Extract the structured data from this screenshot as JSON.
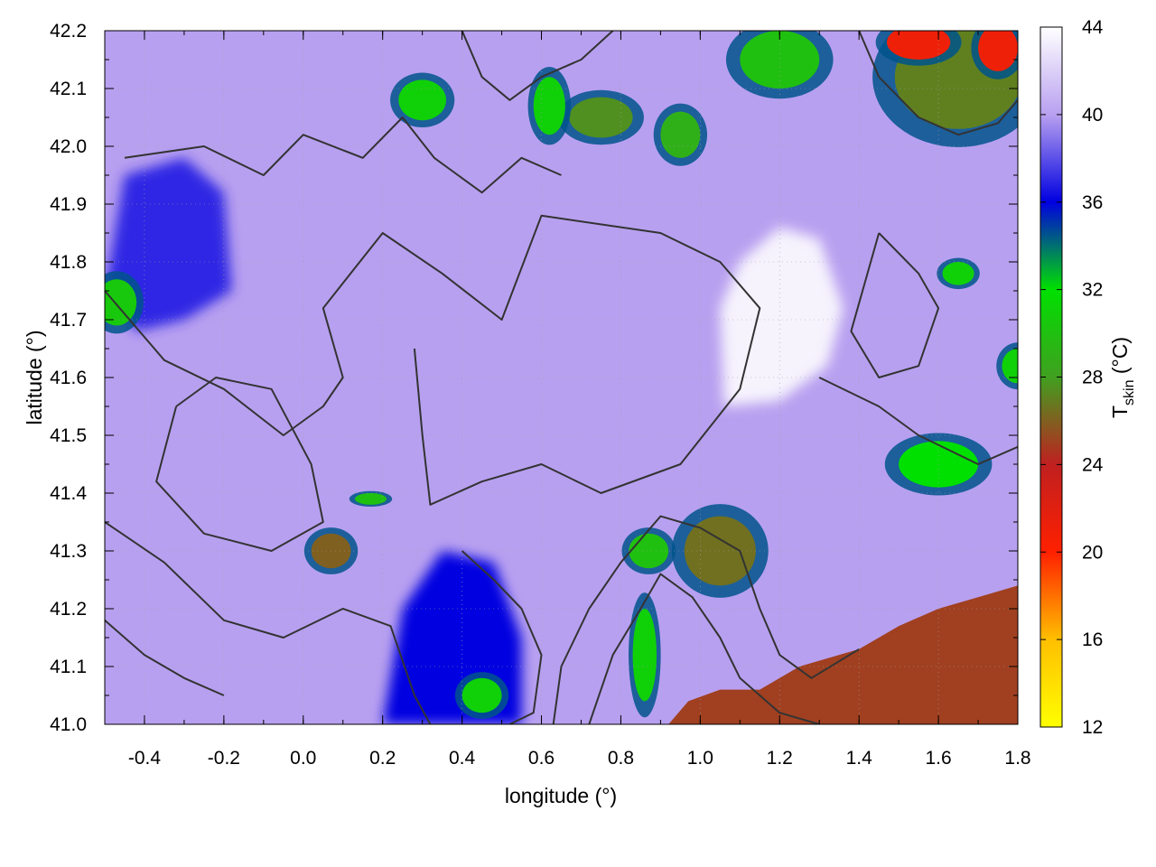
{
  "chart_data": {
    "type": "heatmap",
    "xlabel": "longitude (°)",
    "ylabel": "latitude (°)",
    "colorbar_label": "T",
    "colorbar_label_sub": "skin",
    "colorbar_label_suffix": " (°C)",
    "xlim": [
      -0.5,
      1.8
    ],
    "ylim": [
      41.0,
      42.2
    ],
    "clim": [
      12,
      44
    ],
    "x_ticks": [
      -0.4,
      -0.2,
      0.0,
      0.2,
      0.4,
      0.6,
      0.8,
      1.0,
      1.2,
      1.4,
      1.6,
      1.8
    ],
    "x_tick_labels": [
      "-0.4",
      "-0.2",
      "0.0",
      "0.2",
      "0.4",
      "0.6",
      "0.8",
      "1.0",
      "1.2",
      "1.4",
      "1.6",
      "1.8"
    ],
    "y_ticks": [
      41.0,
      41.1,
      41.2,
      41.3,
      41.4,
      41.5,
      41.6,
      41.7,
      41.8,
      41.9,
      42.0,
      42.1,
      42.2
    ],
    "y_tick_labels": [
      "41.0",
      "41.1",
      "41.2",
      "41.3",
      "41.4",
      "41.5",
      "41.6",
      "41.7",
      "41.8",
      "41.9",
      "42.0",
      "42.1",
      "42.2"
    ],
    "c_ticks": [
      12,
      16,
      20,
      24,
      28,
      32,
      36,
      40,
      44
    ],
    "c_tick_labels": [
      "12",
      "16",
      "20",
      "24",
      "28",
      "32",
      "36",
      "40",
      "44"
    ],
    "grid": true,
    "colormap": [
      {
        "value": 12,
        "color": "#ffff00"
      },
      {
        "value": 16,
        "color": "#ffbf00"
      },
      {
        "value": 20,
        "color": "#ff2000"
      },
      {
        "value": 24,
        "color": "#c02020"
      },
      {
        "value": 28,
        "color": "#40a020"
      },
      {
        "value": 32,
        "color": "#00e000"
      },
      {
        "value": 36,
        "color": "#0000e0"
      },
      {
        "value": 40,
        "color": "#b8a0f0"
      },
      {
        "value": 44,
        "color": "#ffffff"
      }
    ],
    "regions": [
      {
        "name": "sea",
        "value": 25,
        "polygon": [
          [
            0.92,
            41.0
          ],
          [
            0.97,
            41.04
          ],
          [
            1.05,
            41.06
          ],
          [
            1.15,
            41.06
          ],
          [
            1.25,
            41.1
          ],
          [
            1.4,
            41.13
          ],
          [
            1.5,
            41.17
          ],
          [
            1.6,
            41.2
          ],
          [
            1.7,
            41.22
          ],
          [
            1.8,
            41.24
          ],
          [
            1.8,
            41.0
          ]
        ]
      },
      {
        "name": "hot-centre",
        "value": 43.5,
        "polygon": [
          [
            1.06,
            41.55
          ],
          [
            1.05,
            41.72
          ],
          [
            1.1,
            41.8
          ],
          [
            1.2,
            41.86
          ],
          [
            1.3,
            41.84
          ],
          [
            1.36,
            41.72
          ],
          [
            1.32,
            41.62
          ],
          [
            1.2,
            41.56
          ]
        ]
      },
      {
        "name": "cool-west",
        "value": 37,
        "polygon": [
          [
            -0.5,
            41.75
          ],
          [
            -0.45,
            41.95
          ],
          [
            -0.3,
            41.98
          ],
          [
            -0.2,
            41.92
          ],
          [
            -0.18,
            41.75
          ],
          [
            -0.3,
            41.7
          ],
          [
            -0.42,
            41.68
          ]
        ]
      },
      {
        "name": "cool-south",
        "value": 36,
        "polygon": [
          [
            0.2,
            41.0
          ],
          [
            0.25,
            41.2
          ],
          [
            0.35,
            41.3
          ],
          [
            0.48,
            41.28
          ],
          [
            0.55,
            41.15
          ],
          [
            0.55,
            41.0
          ]
        ]
      }
    ],
    "hotspots": [
      {
        "lon": 1.05,
        "lat": 41.3,
        "rx": 0.09,
        "ry": 0.06,
        "value": 26.5
      },
      {
        "lon": 0.87,
        "lat": 41.3,
        "rx": 0.05,
        "ry": 0.03,
        "value": 30
      },
      {
        "lon": 0.86,
        "lat": 41.12,
        "rx": 0.03,
        "ry": 0.08,
        "value": 31
      },
      {
        "lon": 0.45,
        "lat": 41.05,
        "rx": 0.05,
        "ry": 0.03,
        "value": 31
      },
      {
        "lon": 1.65,
        "lat": 42.12,
        "rx": 0.16,
        "ry": 0.09,
        "value": 27
      },
      {
        "lon": 1.55,
        "lat": 42.18,
        "rx": 0.08,
        "ry": 0.03,
        "value": 21
      },
      {
        "lon": 1.75,
        "lat": 42.17,
        "rx": 0.05,
        "ry": 0.04,
        "value": 21
      },
      {
        "lon": 1.2,
        "lat": 42.15,
        "rx": 0.1,
        "ry": 0.05,
        "value": 30
      },
      {
        "lon": 0.75,
        "lat": 42.05,
        "rx": 0.08,
        "ry": 0.035,
        "value": 27.5
      },
      {
        "lon": 0.95,
        "lat": 42.02,
        "rx": 0.05,
        "ry": 0.04,
        "value": 29
      },
      {
        "lon": 0.3,
        "lat": 42.08,
        "rx": 0.06,
        "ry": 0.035,
        "value": 31
      },
      {
        "lon": 0.62,
        "lat": 42.07,
        "rx": 0.04,
        "ry": 0.05,
        "value": 31
      },
      {
        "lon": -0.47,
        "lat": 41.73,
        "rx": 0.05,
        "ry": 0.04,
        "value": 30.5
      },
      {
        "lon": 1.8,
        "lat": 41.62,
        "rx": 0.04,
        "ry": 0.03,
        "value": 31
      },
      {
        "lon": 1.6,
        "lat": 41.45,
        "rx": 0.1,
        "ry": 0.04,
        "value": 32
      },
      {
        "lon": 1.65,
        "lat": 41.78,
        "rx": 0.04,
        "ry": 0.02,
        "value": 31
      },
      {
        "lon": 0.07,
        "lat": 41.3,
        "rx": 0.05,
        "ry": 0.03,
        "value": 26
      },
      {
        "lon": 0.17,
        "lat": 41.39,
        "rx": 0.04,
        "ry": 0.01,
        "value": 30
      }
    ],
    "contours": [
      [
        [
          -0.5,
          41.75
        ],
        [
          -0.35,
          41.63
        ],
        [
          -0.2,
          41.58
        ],
        [
          -0.05,
          41.5
        ],
        [
          0.05,
          41.55
        ],
        [
          0.1,
          41.6
        ],
        [
          0.05,
          41.72
        ],
        [
          0.2,
          41.85
        ],
        [
          0.35,
          41.78
        ],
        [
          0.5,
          41.7
        ],
        [
          0.6,
          41.88
        ],
        [
          0.9,
          41.85
        ],
        [
          1.05,
          41.8
        ],
        [
          1.15,
          41.72
        ],
        [
          1.1,
          41.58
        ],
        [
          0.95,
          41.45
        ],
        [
          0.75,
          41.4
        ],
        [
          0.6,
          41.45
        ],
        [
          0.45,
          41.42
        ],
        [
          0.32,
          41.38
        ],
        [
          0.3,
          41.5
        ],
        [
          0.28,
          41.65
        ]
      ],
      [
        [
          -0.5,
          41.35
        ],
        [
          -0.35,
          41.28
        ],
        [
          -0.2,
          41.18
        ],
        [
          -0.05,
          41.15
        ],
        [
          0.1,
          41.2
        ],
        [
          0.22,
          41.17
        ],
        [
          0.28,
          41.05
        ],
        [
          0.32,
          41.0
        ]
      ],
      [
        [
          -0.32,
          41.55
        ],
        [
          -0.22,
          41.6
        ],
        [
          -0.08,
          41.58
        ],
        [
          0.02,
          41.45
        ],
        [
          0.05,
          41.35
        ],
        [
          -0.08,
          41.3
        ],
        [
          -0.25,
          41.33
        ],
        [
          -0.37,
          41.42
        ],
        [
          -0.32,
          41.55
        ]
      ],
      [
        [
          -0.45,
          41.98
        ],
        [
          -0.25,
          42.0
        ],
        [
          -0.1,
          41.95
        ],
        [
          0.0,
          42.02
        ],
        [
          0.15,
          41.98
        ],
        [
          0.25,
          42.05
        ],
        [
          0.33,
          41.98
        ],
        [
          0.45,
          41.92
        ],
        [
          0.55,
          41.98
        ],
        [
          0.65,
          41.95
        ]
      ],
      [
        [
          0.4,
          42.2
        ],
        [
          0.45,
          42.12
        ],
        [
          0.52,
          42.08
        ],
        [
          0.6,
          42.12
        ],
        [
          0.7,
          42.15
        ],
        [
          0.78,
          42.2
        ]
      ],
      [
        [
          0.63,
          41.0
        ],
        [
          0.65,
          41.1
        ],
        [
          0.72,
          41.2
        ],
        [
          0.8,
          41.28
        ],
        [
          0.9,
          41.36
        ],
        [
          1.0,
          41.34
        ],
        [
          1.1,
          41.3
        ],
        [
          1.15,
          41.2
        ],
        [
          1.2,
          41.12
        ],
        [
          1.28,
          41.08
        ],
        [
          1.4,
          41.13
        ]
      ],
      [
        [
          0.72,
          41.0
        ],
        [
          0.78,
          41.12
        ],
        [
          0.85,
          41.2
        ],
        [
          0.9,
          41.26
        ],
        [
          0.98,
          41.22
        ],
        [
          1.05,
          41.15
        ],
        [
          1.1,
          41.08
        ],
        [
          1.2,
          41.02
        ],
        [
          1.3,
          41.0
        ]
      ],
      [
        [
          1.3,
          41.6
        ],
        [
          1.45,
          41.55
        ],
        [
          1.55,
          41.5
        ],
        [
          1.7,
          41.45
        ],
        [
          1.8,
          41.48
        ]
      ],
      [
        [
          1.4,
          42.2
        ],
        [
          1.45,
          42.12
        ],
        [
          1.55,
          42.05
        ],
        [
          1.65,
          42.02
        ],
        [
          1.75,
          42.04
        ],
        [
          1.8,
          42.08
        ]
      ],
      [
        [
          1.45,
          41.85
        ],
        [
          1.55,
          41.78
        ],
        [
          1.6,
          41.72
        ],
        [
          1.55,
          41.62
        ],
        [
          1.45,
          41.6
        ],
        [
          1.38,
          41.68
        ],
        [
          1.45,
          41.85
        ]
      ],
      [
        [
          0.4,
          41.3
        ],
        [
          0.48,
          41.25
        ],
        [
          0.55,
          41.2
        ],
        [
          0.6,
          41.12
        ],
        [
          0.58,
          41.02
        ],
        [
          0.52,
          41.0
        ]
      ],
      [
        [
          -0.5,
          41.18
        ],
        [
          -0.4,
          41.12
        ],
        [
          -0.3,
          41.08
        ],
        [
          -0.2,
          41.05
        ]
      ]
    ]
  }
}
